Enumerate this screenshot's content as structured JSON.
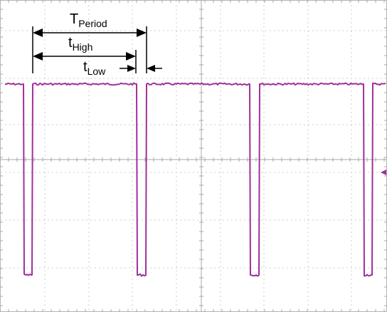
{
  "colors": {
    "background": "#ffffff",
    "grid_dots": "#c8c8c8",
    "frame": "#b4b4b4",
    "trace": "#a0309a",
    "annotation": "#000000"
  },
  "labels": {
    "t_period_main": "T",
    "t_period_sub": "Period",
    "t_high_main": "t",
    "t_high_sub": "High",
    "t_low_main": "t",
    "t_low_sub": "Low"
  },
  "icons": {
    "channel_marker": "arrow-left-icon"
  }
}
